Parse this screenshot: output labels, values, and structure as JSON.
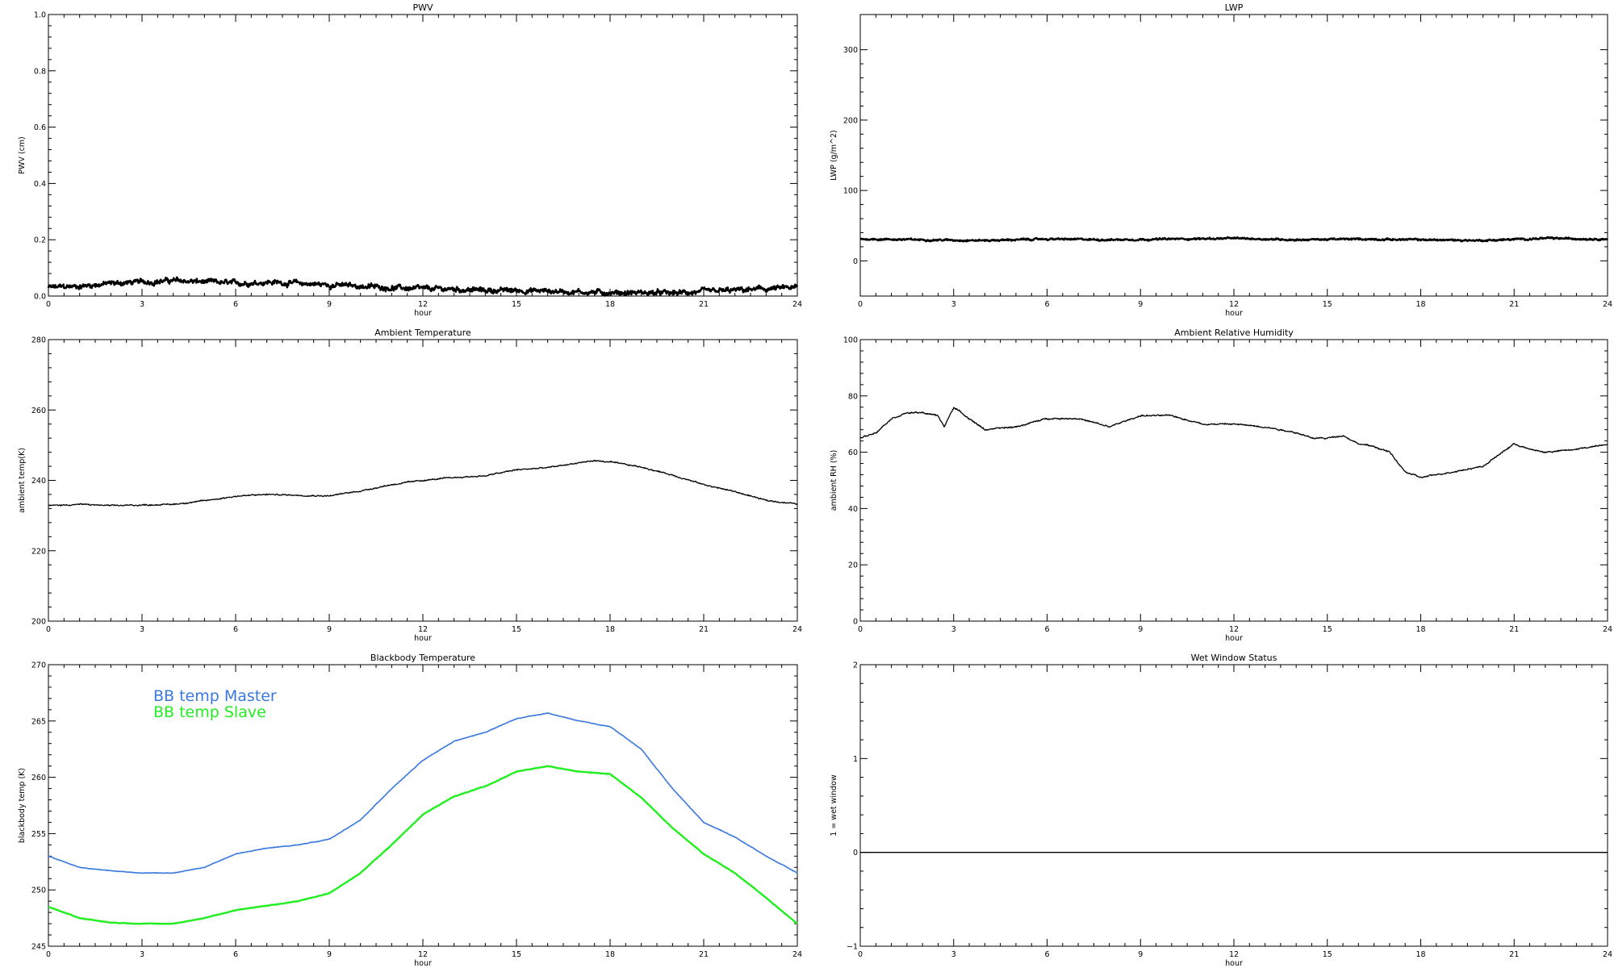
{
  "chart_data": [
    {
      "id": "pwv",
      "type": "line",
      "title": "PWV",
      "xlabel": "hour",
      "ylabel": "PWV (cm)",
      "xlim": [
        0,
        24
      ],
      "ylim": [
        0,
        1.0
      ],
      "xticks": [
        "0",
        "3",
        "6",
        "9",
        "12",
        "15",
        "18",
        "21",
        "24"
      ],
      "yticks": [
        "0.0",
        "0.2",
        "0.4",
        "0.6",
        "0.8",
        "1.0"
      ],
      "noise": 0.012,
      "series": [
        {
          "color": "#000000",
          "width": 2.5,
          "x": [
            0,
            1,
            2,
            3,
            4,
            5,
            6,
            7,
            8,
            9,
            10,
            11,
            12,
            13,
            14,
            15,
            16,
            17,
            18,
            19,
            20,
            21,
            22,
            23,
            24
          ],
          "y": [
            0.03,
            0.035,
            0.045,
            0.05,
            0.055,
            0.05,
            0.045,
            0.05,
            0.045,
            0.04,
            0.035,
            0.03,
            0.025,
            0.025,
            0.02,
            0.02,
            0.018,
            0.015,
            0.012,
            0.012,
            0.01,
            0.015,
            0.02,
            0.025,
            0.03
          ]
        }
      ]
    },
    {
      "id": "lwp",
      "type": "line",
      "title": "LWP",
      "xlabel": "hour",
      "ylabel": "LWP (g/m^2)",
      "xlim": [
        0,
        24
      ],
      "ylim": [
        -50,
        350
      ],
      "xticks": [
        "0",
        "3",
        "6",
        "9",
        "12",
        "15",
        "18",
        "21",
        "24"
      ],
      "yticks": [
        "0",
        "100",
        "200",
        "300"
      ],
      "ytick_values": [
        0,
        100,
        200,
        300
      ],
      "noise": 1.6,
      "series": [
        {
          "color": "#000000",
          "width": 2.5,
          "x": [
            0,
            2,
            4,
            6,
            8,
            10,
            12,
            14,
            16,
            18,
            20,
            22,
            24
          ],
          "y": [
            31,
            30,
            29,
            31,
            30,
            31,
            32,
            30,
            31,
            30,
            29,
            32,
            31
          ]
        }
      ]
    },
    {
      "id": "ambient_temp",
      "type": "line",
      "title": "Ambient Temperature",
      "xlabel": "hour",
      "ylabel": "ambient temp(K)",
      "xlim": [
        0,
        24
      ],
      "ylim": [
        200,
        280
      ],
      "xticks": [
        "0",
        "3",
        "6",
        "9",
        "12",
        "15",
        "18",
        "21",
        "24"
      ],
      "yticks": [
        "200",
        "220",
        "240",
        "260",
        "280"
      ],
      "ytick_values": [
        200,
        220,
        240,
        260,
        280
      ],
      "noise": 0.25,
      "series": [
        {
          "color": "#000000",
          "width": 1.3,
          "x": [
            0,
            1,
            2,
            3,
            4,
            5,
            6,
            7,
            8,
            9,
            10,
            11,
            12,
            13,
            14,
            15,
            16,
            17,
            17.5,
            18,
            19,
            20,
            21,
            22,
            23,
            24
          ],
          "y": [
            232.8,
            233.2,
            232.8,
            233.0,
            233.2,
            234.2,
            235.5,
            236.0,
            235.8,
            235.6,
            237.0,
            238.8,
            240.0,
            240.8,
            241.3,
            243.0,
            243.6,
            245.0,
            245.6,
            245.2,
            243.8,
            241.5,
            238.8,
            236.8,
            234.3,
            233.3
          ]
        }
      ]
    },
    {
      "id": "ambient_rh",
      "type": "line",
      "title": "Ambient Relative Humidity",
      "xlabel": "hour",
      "ylabel": "ambient RH (%)",
      "xlim": [
        0,
        24
      ],
      "ylim": [
        0,
        100
      ],
      "xticks": [
        "0",
        "3",
        "6",
        "9",
        "12",
        "15",
        "18",
        "21",
        "24"
      ],
      "yticks": [
        "0",
        "20",
        "40",
        "60",
        "80",
        "100"
      ],
      "ytick_values": [
        0,
        20,
        40,
        60,
        80,
        100
      ],
      "noise": 0.35,
      "series": [
        {
          "color": "#000000",
          "width": 1.3,
          "x": [
            0,
            0.5,
            1,
            1.5,
            2,
            2.5,
            2.7,
            3,
            3.5,
            4,
            5,
            6,
            7,
            8,
            9,
            10,
            11,
            12,
            13,
            14,
            14.5,
            15,
            15.5,
            16,
            16.5,
            17,
            17.5,
            18,
            18.5,
            19,
            20,
            20.5,
            21,
            21.5,
            22,
            23,
            24
          ],
          "y": [
            65,
            67,
            72,
            74,
            74,
            73,
            69,
            76,
            72,
            68,
            69,
            72,
            72,
            69,
            73,
            73,
            70,
            70,
            69,
            67,
            65,
            65,
            66,
            63,
            62,
            60,
            53,
            51,
            52,
            53,
            55,
            59,
            63,
            61,
            60,
            61,
            63
          ]
        }
      ]
    },
    {
      "id": "bb_temp",
      "type": "line",
      "title": "Blackbody Temperature",
      "xlabel": "hour",
      "ylabel": "blackbody temp (K)",
      "xlim": [
        0,
        24
      ],
      "ylim": [
        245,
        270
      ],
      "xticks": [
        "0",
        "3",
        "6",
        "9",
        "12",
        "15",
        "18",
        "21",
        "24"
      ],
      "yticks": [
        "245",
        "250",
        "255",
        "260",
        "265",
        "270"
      ],
      "ytick_values": [
        245,
        250,
        255,
        260,
        265,
        270
      ],
      "noise": 0.03,
      "legend": {
        "position": "top-left"
      },
      "series": [
        {
          "name": "BB temp Master",
          "color": "#3a78e0",
          "width": 1.6,
          "x": [
            0,
            1,
            2,
            3,
            4,
            5,
            6,
            7,
            8,
            9,
            10,
            11,
            12,
            13,
            14,
            15,
            16,
            17,
            18,
            19,
            20,
            21,
            22,
            23,
            24
          ],
          "y": [
            253.0,
            252.0,
            251.7,
            251.5,
            251.5,
            252.0,
            253.2,
            253.7,
            254.0,
            254.5,
            256.2,
            259.0,
            261.5,
            263.2,
            264.0,
            265.2,
            265.7,
            265.0,
            264.5,
            262.5,
            259.0,
            256.0,
            254.7,
            253.0,
            251.5
          ]
        },
        {
          "name": "BB temp Slave",
          "color": "#22ee22",
          "width": 2.4,
          "x": [
            0,
            1,
            2,
            3,
            4,
            5,
            6,
            7,
            8,
            9,
            10,
            11,
            12,
            13,
            14,
            15,
            16,
            17,
            18,
            19,
            20,
            21,
            22,
            23,
            24
          ],
          "y": [
            248.5,
            247.5,
            247.1,
            247.0,
            247.0,
            247.5,
            248.2,
            248.6,
            249.0,
            249.7,
            251.5,
            254.0,
            256.7,
            258.3,
            259.2,
            260.5,
            261.0,
            260.5,
            260.3,
            258.2,
            255.5,
            253.2,
            251.5,
            249.3,
            247.0
          ]
        }
      ]
    },
    {
      "id": "wet_window",
      "type": "line",
      "title": "Wet Window Status",
      "xlabel": "hour",
      "ylabel": "1 = wet window",
      "xlim": [
        0,
        24
      ],
      "ylim": [
        -1,
        2
      ],
      "xticks": [
        "0",
        "3",
        "6",
        "9",
        "12",
        "15",
        "18",
        "21",
        "24"
      ],
      "yticks": [
        "−1",
        "0",
        "1",
        "2"
      ],
      "ytick_values": [
        -1,
        0,
        1,
        2
      ],
      "noise": 0,
      "series": [
        {
          "color": "#000000",
          "width": 1.3,
          "x": [
            0,
            24
          ],
          "y": [
            0,
            0
          ]
        }
      ]
    }
  ]
}
